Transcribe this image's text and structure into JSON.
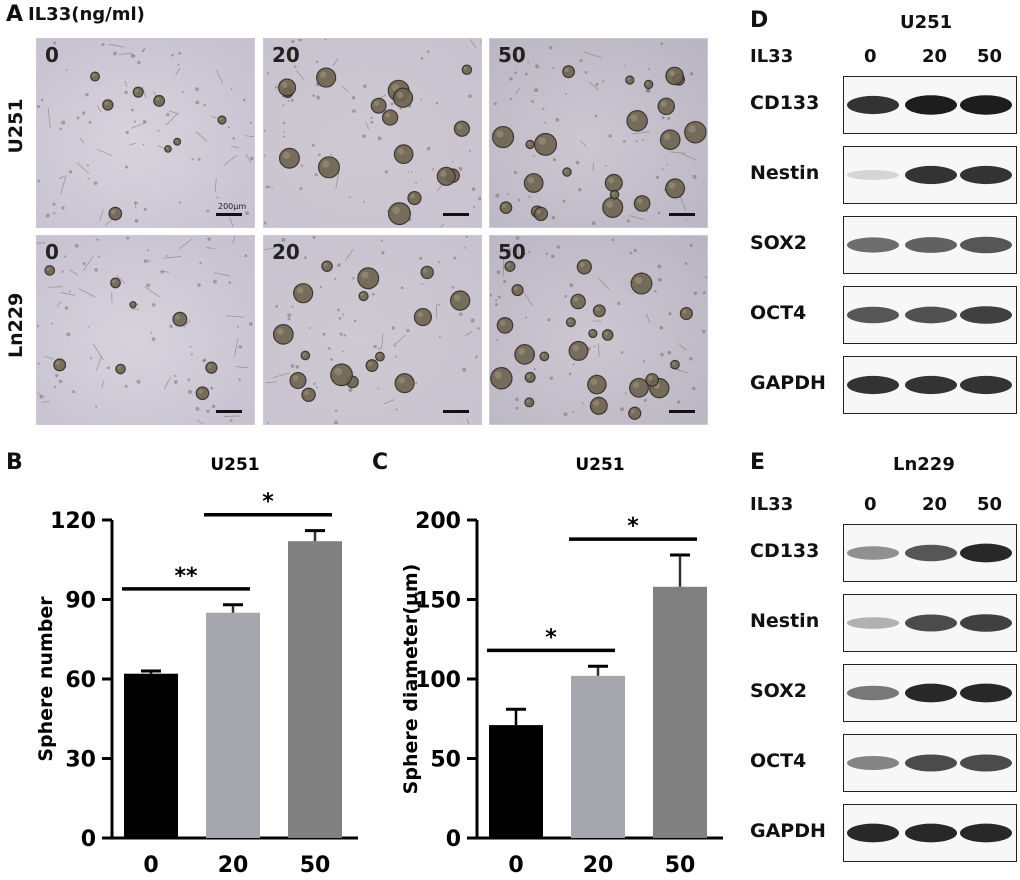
{
  "panel_a": {
    "letter": "A",
    "treatment_label": "IL33(ng/ml)",
    "row_labels": [
      "U251",
      "Ln229"
    ],
    "doses": [
      "0",
      "20",
      "50"
    ],
    "scale_text": "200µm"
  },
  "panel_d": {
    "letter": "D",
    "cell_line": "U251",
    "treatment": "IL33",
    "lanes": [
      "0",
      "20",
      "50"
    ],
    "proteins": [
      "CD133",
      "Nestin",
      "SOX2",
      "OCT4",
      "GAPDH"
    ],
    "band_intensity": [
      [
        0.85,
        0.95,
        0.95
      ],
      [
        0.15,
        0.85,
        0.85
      ],
      [
        0.6,
        0.65,
        0.7
      ],
      [
        0.7,
        0.72,
        0.8
      ],
      [
        0.85,
        0.85,
        0.85
      ]
    ]
  },
  "panel_e": {
    "letter": "E",
    "cell_line": "Ln229",
    "treatment": "IL33",
    "lanes": [
      "0",
      "20",
      "50"
    ],
    "proteins": [
      "CD133",
      "Nestin",
      "SOX2",
      "OCT4",
      "GAPDH"
    ],
    "band_intensity": [
      [
        0.45,
        0.7,
        0.9
      ],
      [
        0.3,
        0.75,
        0.8
      ],
      [
        0.55,
        0.9,
        0.9
      ],
      [
        0.5,
        0.75,
        0.75
      ],
      [
        0.9,
        0.9,
        0.9
      ]
    ]
  },
  "chart_data": [
    {
      "panel": "B",
      "type": "bar",
      "title": "U251",
      "ylabel": "Sphere number",
      "xlabel": "",
      "categories": [
        "0",
        "20",
        "50"
      ],
      "values": [
        62,
        85,
        112
      ],
      "errors": [
        1,
        3,
        4
      ],
      "ylim": [
        0,
        120
      ],
      "yticks": [
        0,
        30,
        60,
        90,
        120
      ],
      "colors": [
        "#000000",
        "#a6a6ae",
        "#808080"
      ],
      "significance": [
        {
          "from": 0,
          "to": 1,
          "label": "**"
        },
        {
          "from": 1,
          "to": 2,
          "label": "*"
        }
      ]
    },
    {
      "panel": "C",
      "type": "bar",
      "title": "U251",
      "ylabel": "Sphere diameter(μm)",
      "xlabel": "",
      "categories": [
        "0",
        "20",
        "50"
      ],
      "values": [
        71,
        102,
        158
      ],
      "errors": [
        10,
        6,
        20
      ],
      "ylim": [
        0,
        200
      ],
      "yticks": [
        0,
        50,
        100,
        150,
        200
      ],
      "colors": [
        "#000000",
        "#a6a6ae",
        "#808080"
      ],
      "significance": [
        {
          "from": 0,
          "to": 1,
          "label": "*"
        },
        {
          "from": 1,
          "to": 2,
          "label": "*"
        }
      ]
    }
  ]
}
